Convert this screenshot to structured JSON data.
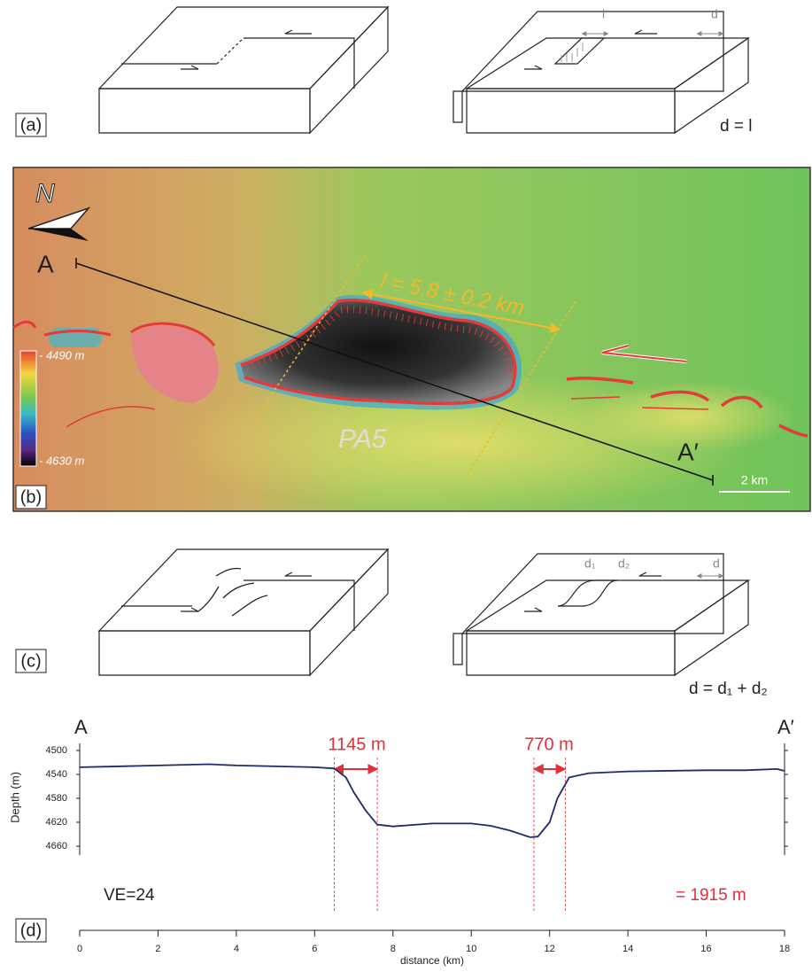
{
  "panel_a": {
    "label": "(a)",
    "l_label": "l",
    "d_label": "d",
    "equation": "d = l"
  },
  "panel_b": {
    "label": "(b)",
    "north": "N",
    "start": "A",
    "end": "A′",
    "length": "l = 5.8 ± 0.2 km",
    "basin": "PA5",
    "scale_top": "- 4490 m",
    "scale_bottom": "- 4630 m",
    "scale_bar": "2 km"
  },
  "panel_c": {
    "label": "(c)",
    "d1_label": "d₁",
    "d2_label": "d₂",
    "d_label": "d",
    "equation": "d = d₁ + d₂"
  },
  "chart_data": {
    "type": "line",
    "panel_label": "(d)",
    "start": "A",
    "end": "A′",
    "xlabel": "distance (km)",
    "ylabel": "Depth (m)",
    "color": "#1f2a6b",
    "x": [
      0,
      2,
      3.3,
      4,
      6,
      6.5,
      6.8,
      7,
      7.3,
      7.6,
      8,
      9,
      10,
      10.5,
      11,
      11.5,
      11.7,
      12,
      12.2,
      12.5,
      13,
      14,
      16,
      17,
      17.8,
      18
    ],
    "values": [
      4528,
      4525,
      4523,
      4525,
      4528,
      4530,
      4545,
      4570,
      4600,
      4624,
      4627,
      4622,
      4622,
      4626,
      4634,
      4645,
      4644,
      4620,
      4580,
      4545,
      4538,
      4535,
      4533,
      4533,
      4531,
      4534
    ],
    "xlim": [
      0,
      18
    ],
    "xticks": [
      0,
      2,
      4,
      6,
      8,
      10,
      12,
      14,
      16,
      18
    ],
    "ylim": [
      4500,
      4660
    ],
    "yticks": [
      4500,
      4540,
      4580,
      4620,
      4660
    ],
    "vlines": [
      6.5,
      7.6,
      11.6,
      12.4
    ],
    "vline_color": "#e0303a",
    "annotations": [
      "1145 m",
      "770 m",
      "VE=24",
      "= 1915 m"
    ]
  }
}
